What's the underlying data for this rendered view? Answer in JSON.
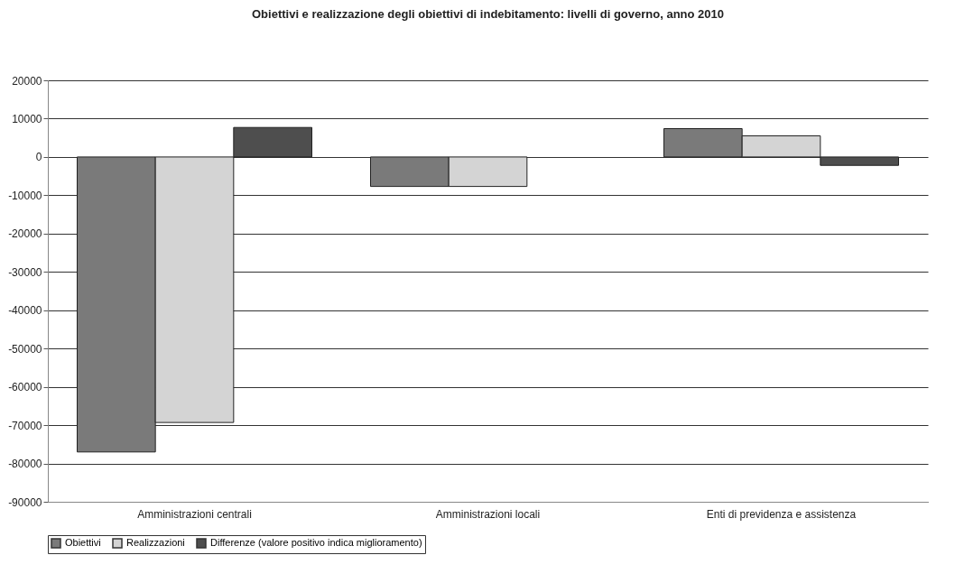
{
  "chart_data": {
    "type": "bar",
    "title": "Obiettivi e realizzazione degli obiettivi di indebitamento: livelli di governo, anno 2010",
    "categories": [
      "Amministrazioni centrali",
      "Amministrazioni locali",
      "Enti di previdenza e assistenza"
    ],
    "series": [
      {
        "name": "Obiettivi",
        "color": "#7a7a7a",
        "values": [
          -77000,
          -7700,
          7400
        ]
      },
      {
        "name": "Realizzazioni",
        "color": "#d4d4d4",
        "values": [
          -69300,
          -7700,
          5500
        ]
      },
      {
        "name": "Differenze (valore positivo indica miglioramento)",
        "color": "#4e4e4e",
        "values": [
          7700,
          null,
          -2200
        ]
      }
    ],
    "ylim": [
      -90000,
      20000
    ],
    "yticks": [
      -90000,
      -80000,
      -70000,
      -60000,
      -50000,
      -40000,
      -30000,
      -20000,
      -10000,
      0,
      10000,
      20000
    ],
    "grid": "y",
    "legend": "bottom"
  }
}
